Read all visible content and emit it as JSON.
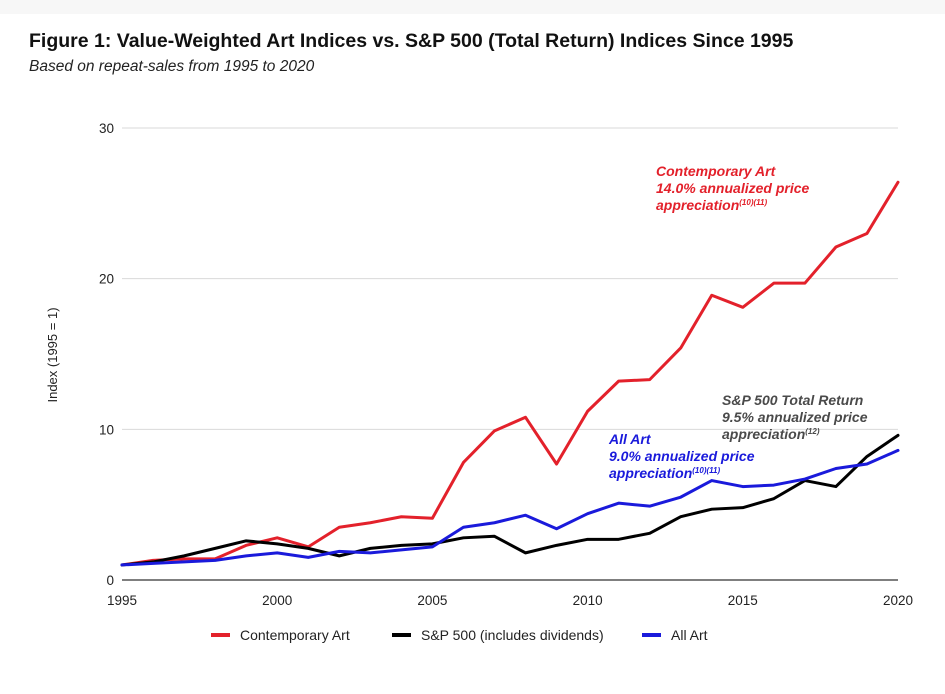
{
  "title": "Figure 1: Value-Weighted Art Indices vs. S&P 500 (Total Return) Indices Since 1995",
  "subtitle": "Based on repeat-sales from 1995 to 2020",
  "chart_data": {
    "type": "line",
    "title": "Figure 1: Value-Weighted Art Indices vs. S&P 500 (Total Return) Indices Since 1995",
    "subtitle": "Based on repeat-sales from 1995 to 2020",
    "xlabel": "",
    "ylabel": "Index (1995 = 1)",
    "xlim": [
      1995,
      2020
    ],
    "ylim": [
      0,
      30
    ],
    "x_ticks": [
      "1995",
      "2000",
      "2005",
      "2010",
      "2015",
      "2020"
    ],
    "y_ticks": [
      "0",
      "10",
      "20",
      "30"
    ],
    "grid": "horizontal",
    "legend_position": "bottom",
    "x": [
      1995,
      1996,
      1997,
      1998,
      1999,
      2000,
      2001,
      2002,
      2003,
      2004,
      2005,
      2006,
      2007,
      2008,
      2009,
      2010,
      2011,
      2012,
      2013,
      2014,
      2015,
      2016,
      2017,
      2018,
      2019,
      2020
    ],
    "series": [
      {
        "name": "Contemporary Art",
        "color": "#e3212b",
        "values": [
          1.0,
          1.3,
          1.4,
          1.4,
          2.3,
          2.8,
          2.2,
          3.5,
          3.8,
          4.2,
          4.1,
          7.8,
          9.9,
          10.8,
          7.7,
          11.2,
          13.2,
          13.3,
          15.4,
          18.9,
          18.1,
          19.7,
          19.7,
          22.1,
          23.0,
          26.4
        ]
      },
      {
        "name": "S&P 500 (includes dividends)",
        "color": "#000000",
        "values": [
          1.0,
          1.2,
          1.6,
          2.1,
          2.6,
          2.4,
          2.1,
          1.6,
          2.1,
          2.3,
          2.4,
          2.8,
          2.9,
          1.8,
          2.3,
          2.7,
          2.7,
          3.1,
          4.2,
          4.7,
          4.8,
          5.4,
          6.6,
          6.2,
          8.2,
          9.6
        ]
      },
      {
        "name": "All Art",
        "color": "#1a1adb",
        "values": [
          1.0,
          1.1,
          1.2,
          1.3,
          1.6,
          1.8,
          1.5,
          1.9,
          1.8,
          2.0,
          2.2,
          3.5,
          3.8,
          4.3,
          3.4,
          4.4,
          5.1,
          4.9,
          5.5,
          6.6,
          6.2,
          6.3,
          6.7,
          7.4,
          7.7,
          8.6
        ]
      }
    ],
    "annotations": [
      {
        "series": "Contemporary Art",
        "color": "#e3212b",
        "lines": [
          "Contemporary Art",
          "14.0% annualized price",
          "appreciation"
        ],
        "sup": "(10)(11)"
      },
      {
        "series": "S&P 500 (includes dividends)",
        "color": "#4a4a4a",
        "lines": [
          "S&P 500 Total Return",
          "9.5% annualized price",
          "appreciation"
        ],
        "sup": "(12)"
      },
      {
        "series": "All Art",
        "color": "#1a1adb",
        "lines": [
          "All Art",
          "9.0% annualized price",
          "appreciation"
        ],
        "sup": "(10)(11)"
      }
    ]
  }
}
